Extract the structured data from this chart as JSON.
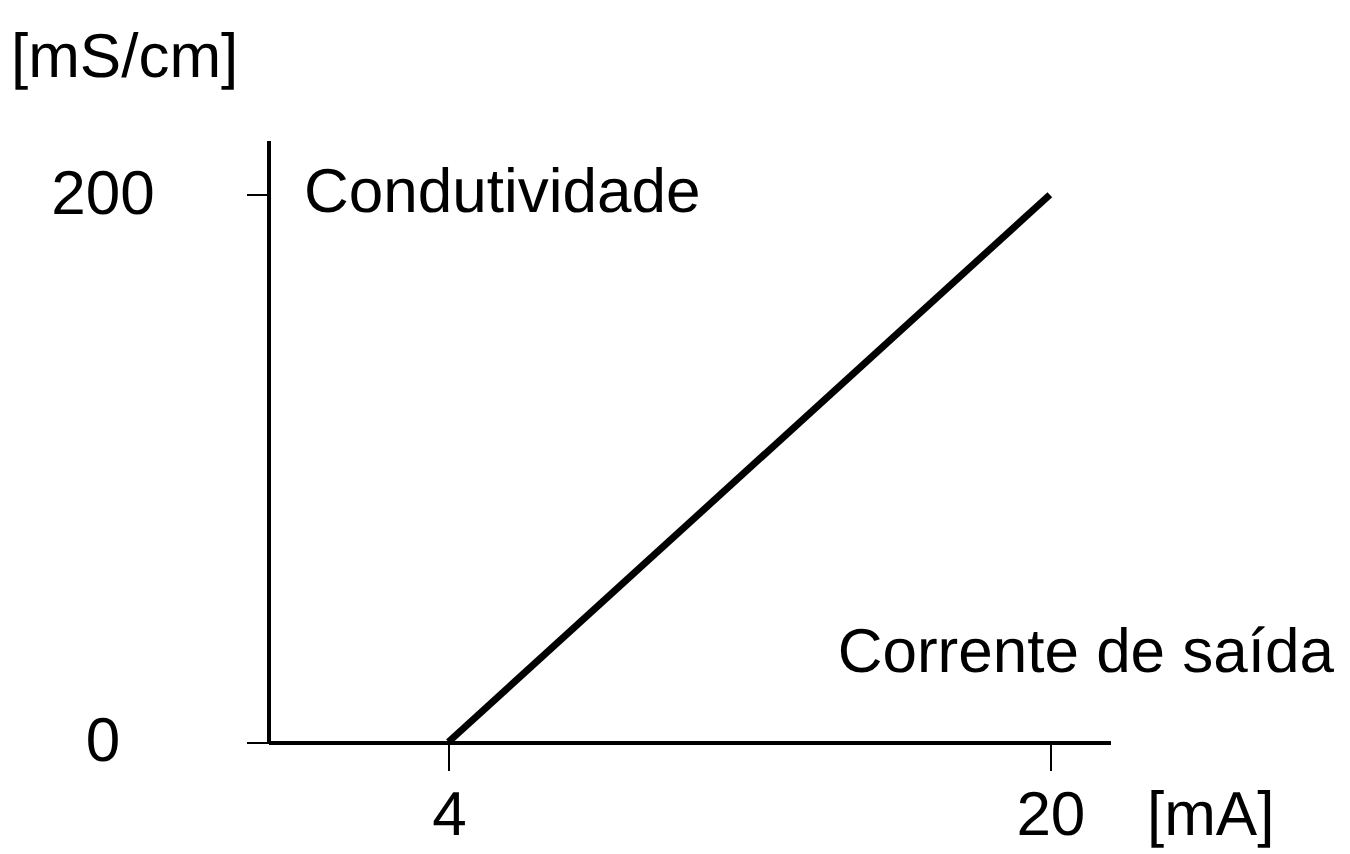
{
  "chart_data": {
    "type": "line",
    "xlabel": "[mA]",
    "ylabel": "[mS/cm]",
    "annotations": [
      "Condutividade",
      "Corrente de saída"
    ],
    "x": [
      4,
      20
    ],
    "series": [
      {
        "color": "#000000",
        "values": [
          0,
          200
        ]
      }
    ],
    "xlim": [
      -0.8,
      21.6
    ],
    "ylim": [
      0,
      220
    ],
    "xticks": [
      4,
      20
    ],
    "yticks": [
      0,
      200
    ],
    "line_style": "solid"
  }
}
